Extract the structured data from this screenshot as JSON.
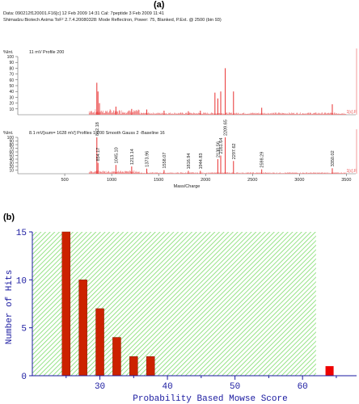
{
  "panel_a_label": "(a)",
  "panel_b_label": "(b)",
  "header": {
    "line1": "Data: 090212f120001.F16[c] 12 Feb 2009 14:31 Cal: 7peptide 3 Feb 2009 11:41",
    "line2": "Shimadzu Biotech Axima ToF² 2.7.4.20080328: Mode Reflectron, Power: 75, Blanked, P.Ext. @ 2500 (bin 93)"
  },
  "chart_data": [
    {
      "type": "line",
      "name": "mass-spectrum-raw",
      "ylabel": "%Int.",
      "profile_label": "11 mV  Profile 200",
      "yticks": [
        10,
        20,
        30,
        40,
        50,
        60,
        70,
        80,
        90,
        100
      ],
      "ylim": [
        0,
        100
      ],
      "xlim": [
        0,
        3600
      ],
      "right_marker": "1[c].F",
      "peaks": [
        {
          "x": 842.18,
          "y": 55
        },
        {
          "x": 854.17,
          "y": 40
        },
        {
          "x": 870,
          "y": 20
        },
        {
          "x": 1045.1,
          "y": 14
        },
        {
          "x": 1213.14,
          "y": 10
        },
        {
          "x": 1373.96,
          "y": 9
        },
        {
          "x": 1558.07,
          "y": 7
        },
        {
          "x": 1816.94,
          "y": 6
        },
        {
          "x": 1944.83,
          "y": 7
        },
        {
          "x": 2100,
          "y": 38
        },
        {
          "x": 2130.56,
          "y": 28
        },
        {
          "x": 2161.64,
          "y": 40
        },
        {
          "x": 2209.65,
          "y": 80
        },
        {
          "x": 2297.62,
          "y": 40
        },
        {
          "x": 2598.29,
          "y": 12
        },
        {
          "x": 3350.02,
          "y": 18
        }
      ]
    },
    {
      "type": "line",
      "name": "mass-spectrum-processed",
      "ylabel": "%Int.",
      "profile_label": "8.1 mV[sum= 1628 mV] Profiles 1-200 Smooth Gauss 2 -Baseline 16",
      "yticks": [
        10,
        20,
        30,
        40,
        50,
        60,
        70,
        80,
        90,
        100
      ],
      "ylim": [
        0,
        100
      ],
      "xlabel": "Mass/Charge",
      "xticks": [
        500,
        1000,
        1500,
        2000,
        2500,
        3000,
        3500
      ],
      "xlim": [
        0,
        3600
      ],
      "right_marker": "1[c].F",
      "peaks": [
        {
          "x": 842.18,
          "y": 100,
          "label": "842.18"
        },
        {
          "x": 854.17,
          "y": 30,
          "label": "854.17"
        },
        {
          "x": 1045.1,
          "y": 24,
          "label": "1045.10"
        },
        {
          "x": 1213.14,
          "y": 20,
          "label": "1213.14"
        },
        {
          "x": 1373.96,
          "y": 14,
          "label": "1373.96"
        },
        {
          "x": 1558.07,
          "y": 10,
          "label": "1558.07"
        },
        {
          "x": 1816.94,
          "y": 8,
          "label": "1816.94"
        },
        {
          "x": 1944.83,
          "y": 8,
          "label": "1944.83"
        },
        {
          "x": 2130.56,
          "y": 40,
          "label": "2130.56"
        },
        {
          "x": 2161.64,
          "y": 50,
          "label": "2161.64"
        },
        {
          "x": 2209.65,
          "y": 100,
          "label": "2209.65"
        },
        {
          "x": 2297.62,
          "y": 35,
          "label": "2297.62"
        },
        {
          "x": 2598.29,
          "y": 12,
          "label": "2598.29"
        },
        {
          "x": 3350.02,
          "y": 15,
          "label": "3350.02"
        }
      ]
    },
    {
      "type": "bar",
      "name": "mowse-score-histogram",
      "ylabel": "Number of Hits",
      "xlabel": "Probability Based Mowse Score",
      "xlim": [
        20,
        68
      ],
      "ylim": [
        0,
        15
      ],
      "xticks": [
        30,
        40,
        50,
        60
      ],
      "yticks": [
        0,
        5,
        10,
        15
      ],
      "significance_threshold": 62,
      "colors": {
        "bar": "#cc2200",
        "hit": "#ee0000",
        "hatch": "#7ddc6a",
        "axis": "#1a1aa0"
      },
      "bars": [
        {
          "x": 25,
          "value": 15
        },
        {
          "x": 27.5,
          "value": 10
        },
        {
          "x": 30,
          "value": 7
        },
        {
          "x": 32.5,
          "value": 4
        },
        {
          "x": 35,
          "value": 2
        },
        {
          "x": 37.5,
          "value": 2
        }
      ],
      "hit": {
        "x": 64,
        "value": 1
      }
    }
  ]
}
